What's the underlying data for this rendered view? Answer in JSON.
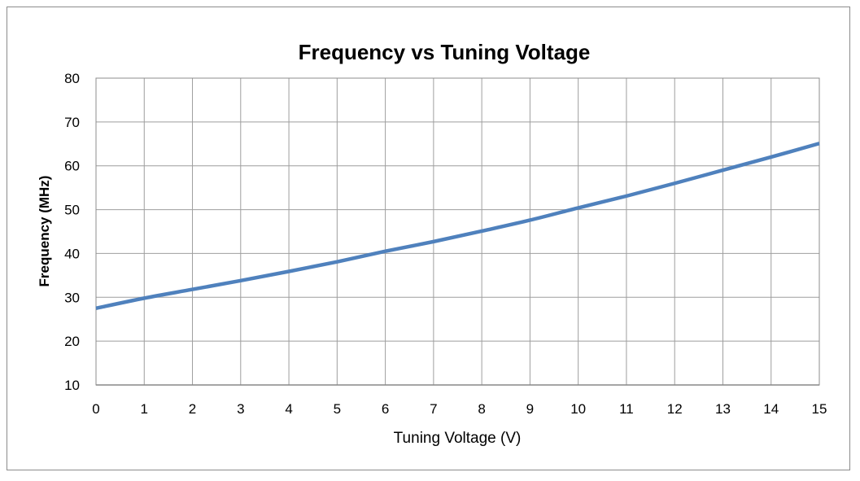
{
  "chart_data": {
    "type": "line",
    "title": "Frequency vs Tuning Voltage",
    "xlabel": "Tuning Voltage (V)",
    "ylabel": "Frequency (MHz)",
    "xlim": [
      0,
      15
    ],
    "ylim": [
      10,
      80
    ],
    "x_ticks": [
      0,
      1,
      2,
      3,
      4,
      5,
      6,
      7,
      8,
      9,
      10,
      11,
      12,
      13,
      14,
      15
    ],
    "y_ticks": [
      10,
      20,
      30,
      40,
      50,
      60,
      70,
      80
    ],
    "grid": true,
    "legend": "none",
    "series": [
      {
        "color": "#4f81bd",
        "x": [
          0,
          1,
          2,
          3,
          4,
          5,
          6,
          7,
          8,
          9,
          10,
          11,
          12,
          13,
          14,
          15
        ],
        "y": [
          27.5,
          29.8,
          31.8,
          33.8,
          35.9,
          38.1,
          40.5,
          42.7,
          45.1,
          47.6,
          50.4,
          53.1,
          56.0,
          59.0,
          62.0,
          65.1
        ]
      }
    ]
  }
}
